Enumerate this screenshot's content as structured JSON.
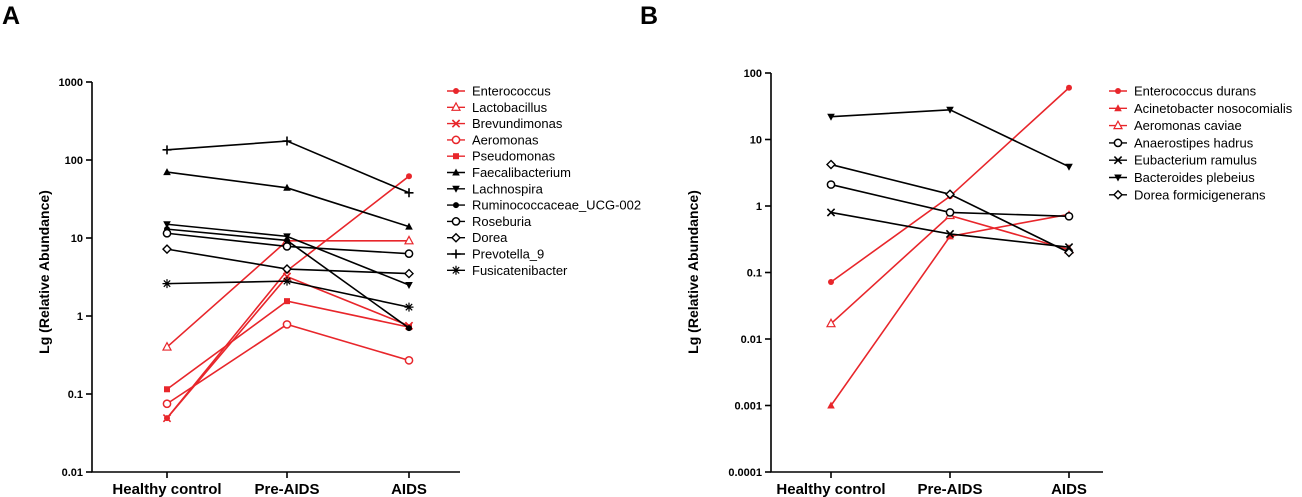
{
  "chart_data": [
    {
      "panel": "A",
      "type": "line",
      "yscale": "log",
      "ylabel": "Lg (Relative Abundance)",
      "xlabel": "",
      "ylim": [
        0.01,
        1000
      ],
      "yticks": [
        0.01,
        0.1,
        1,
        10,
        100,
        1000
      ],
      "ytick_labels": [
        "0.01",
        "0.1",
        "1",
        "10",
        "100",
        "1000"
      ],
      "categories": [
        "Healthy control",
        "Pre-AIDS",
        "AIDS"
      ],
      "legend_position": "right",
      "series": [
        {
          "name": "Enterococcus",
          "color": "#e8262b",
          "marker": "dot",
          "values": [
            0.049,
            3.8,
            62
          ]
        },
        {
          "name": "Lactobacillus",
          "color": "#e8262b",
          "marker": "triangle-open",
          "values": [
            0.4,
            9.2,
            9.2
          ]
        },
        {
          "name": "Brevundimonas",
          "color": "#e8262b",
          "marker": "x",
          "values": [
            0.049,
            3.2,
            0.75
          ]
        },
        {
          "name": "Aeromonas",
          "color": "#e8262b",
          "marker": "circle-open",
          "values": [
            0.075,
            0.78,
            0.27
          ]
        },
        {
          "name": "Pseudomonas",
          "color": "#e8262b",
          "marker": "square",
          "values": [
            0.115,
            1.55,
            0.72
          ]
        },
        {
          "name": "Faecalibacterium",
          "color": "#000000",
          "marker": "triangle",
          "values": [
            70,
            44,
            14
          ]
        },
        {
          "name": "Lachnospira",
          "color": "#000000",
          "marker": "triangle-down",
          "values": [
            15,
            10.5,
            2.5
          ]
        },
        {
          "name": "Ruminococcaceae_UCG-002",
          "color": "#000000",
          "marker": "dot",
          "values": [
            13,
            9.3,
            0.7
          ]
        },
        {
          "name": "Roseburia",
          "color": "#000000",
          "marker": "circle-open",
          "values": [
            11.5,
            7.8,
            6.3
          ]
        },
        {
          "name": "Dorea",
          "color": "#000000",
          "marker": "diamond",
          "values": [
            7.2,
            4.0,
            3.5
          ]
        },
        {
          "name": "Prevotella_9",
          "color": "#000000",
          "marker": "plus",
          "values": [
            135,
            175,
            38
          ]
        },
        {
          "name": "Fusicatenibacter",
          "color": "#000000",
          "marker": "asterisk",
          "values": [
            2.6,
            2.8,
            1.3
          ]
        }
      ]
    },
    {
      "panel": "B",
      "type": "line",
      "yscale": "log",
      "ylabel": "Lg (Relative Abundance)",
      "xlabel": "",
      "ylim": [
        0.0001,
        100
      ],
      "yticks": [
        0.0001,
        0.001,
        0.01,
        0.1,
        1,
        10,
        100
      ],
      "ytick_labels": [
        "0.0001",
        "0.001",
        "0.01",
        "0.1",
        "1",
        "10",
        "100"
      ],
      "categories": [
        "Healthy control",
        "Pre-AIDS",
        "AIDS"
      ],
      "legend_position": "right",
      "series": [
        {
          "name": "Enterococcus durans",
          "color": "#e8262b",
          "marker": "dot",
          "values": [
            0.072,
            1.4,
            60
          ]
        },
        {
          "name": "Acinetobacter nosocomialis",
          "color": "#e8262b",
          "marker": "triangle",
          "values": [
            0.001,
            0.35,
            0.75
          ]
        },
        {
          "name": "Aeromonas caviae",
          "color": "#e8262b",
          "marker": "triangle-open",
          "values": [
            0.017,
            0.72,
            0.22
          ]
        },
        {
          "name": "Anaerostipes hadrus",
          "color": "#000000",
          "marker": "circle-open",
          "values": [
            2.1,
            0.8,
            0.7
          ]
        },
        {
          "name": "Eubacterium ramulus",
          "color": "#000000",
          "marker": "x",
          "values": [
            0.8,
            0.38,
            0.24
          ]
        },
        {
          "name": "Bacteroides plebeius",
          "color": "#000000",
          "marker": "triangle-down",
          "values": [
            22,
            28,
            3.9
          ]
        },
        {
          "name": "Dorea formicigenerans",
          "color": "#000000",
          "marker": "diamond",
          "values": [
            4.2,
            1.5,
            0.2
          ]
        }
      ]
    }
  ]
}
